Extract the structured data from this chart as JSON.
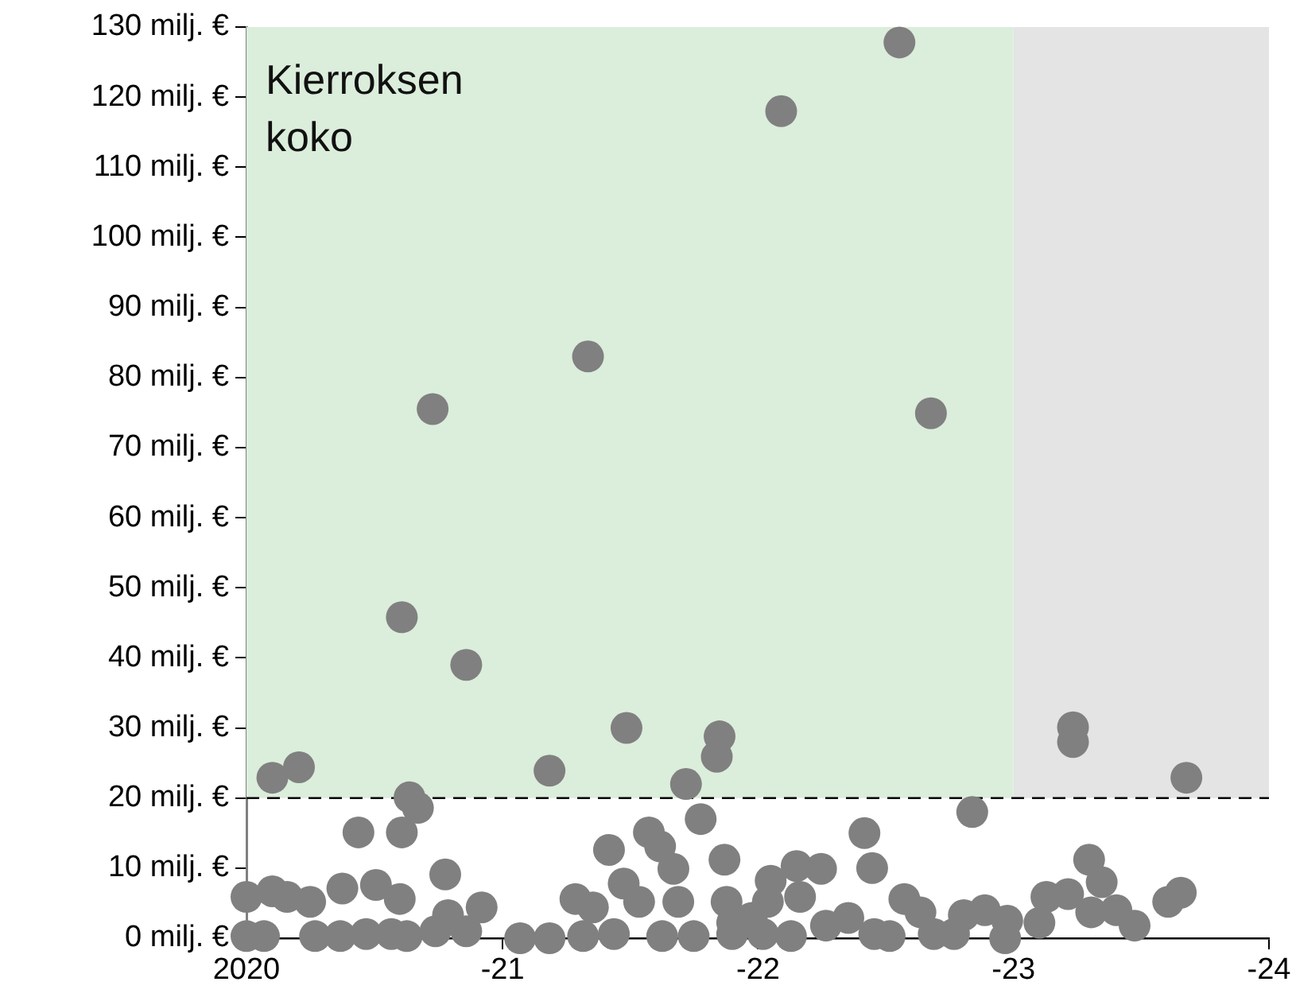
{
  "chart_data": {
    "type": "scatter",
    "color": "#808080",
    "marker": "circle",
    "grid": false,
    "legend": false,
    "xlim": [
      "2020",
      "2024"
    ],
    "xticks": [
      "2020",
      {
        "value": "2021",
        "label": "-21"
      },
      {
        "value": "2022",
        "label": "-22"
      },
      {
        "value": "2023",
        "label": "-23"
      },
      {
        "value": "2024",
        "label": "-24"
      }
    ],
    "ylim": [
      0,
      130
    ],
    "yticks": [
      {
        "value": 0,
        "label": "0 milj. €"
      },
      {
        "value": 10,
        "label": "10 milj. €"
      },
      {
        "value": 20,
        "label": "20 milj. €"
      },
      {
        "value": 30,
        "label": "30 milj. €"
      },
      {
        "value": 40,
        "label": "40 milj. €"
      },
      {
        "value": 50,
        "label": "50 milj. €"
      },
      {
        "value": 60,
        "label": "60 milj. €"
      },
      {
        "value": 70,
        "label": "70 milj. €"
      },
      {
        "value": 80,
        "label": "80 milj. €"
      },
      {
        "value": 90,
        "label": "90 milj. €"
      },
      {
        "value": 100,
        "label": "100 milj. €"
      },
      {
        "value": 110,
        "label": "110 milj. €"
      },
      {
        "value": 120,
        "label": "120 milj. €"
      },
      {
        "value": 130,
        "label": "130 milj. €"
      }
    ],
    "ref_lines": [
      {
        "axis": "y",
        "value": 20,
        "color": "#000000",
        "line_style": "dashed"
      }
    ],
    "bands": [
      {
        "axis": "x",
        "from": "2020",
        "to": "2023",
        "label": "Kierroksen koko",
        "color": "#dbeddb"
      },
      {
        "axis": "x",
        "from": "2023",
        "to": "2024",
        "color": "#e4e4e4"
      }
    ],
    "x": [
      "2022-02-03",
      "2021-05-03",
      "2020-09-23",
      "2020-08-10",
      "2022-07-22",
      "2022-09-05",
      "2020-02-07",
      "2020-03-16",
      "2020-11-10",
      "2021-03-09",
      "2021-06-27",
      "2021-11-07",
      "2021-11-03",
      "2021-09-20",
      "2020-08-21",
      "2020-09-02",
      "2020-06-09",
      "2020-08-10",
      "2020-10-11",
      "2021-10-11",
      "2021-07-29",
      "2021-08-14",
      "2021-09-02",
      "2021-06-02",
      "2021-11-14",
      "2021-06-23",
      "2020-01-01",
      "2020-02-07",
      "2020-02-28",
      "2020-04-01",
      "2020-05-17",
      "2020-07-04",
      "2020-08-07",
      "2020-10-15",
      "2020-12-02",
      "2021-04-15",
      "2021-05-10",
      "2021-07-15",
      "2021-09-09",
      "2021-11-17",
      "2020-01-01",
      "2020-01-26",
      "2020-04-08",
      "2020-05-14",
      "2020-06-20",
      "2020-07-26",
      "2020-08-17",
      "2020-09-27",
      "2020-11-10",
      "2021-01-26",
      "2021-03-09",
      "2021-04-26",
      "2021-06-09",
      "2021-08-17",
      "2021-10-01",
      "2021-11-25",
      "2021-12-23",
      "2023-03-27",
      "2023-03-27",
      "2023-09-05",
      "2022-11-03",
      "2022-06-02",
      "2022-06-13",
      "2022-02-25",
      "2022-04-01",
      "2022-01-19",
      "2023-04-19",
      "2023-05-07",
      "2023-02-17",
      "2023-03-20",
      "2023-08-28",
      "2023-08-10",
      "2022-03-02",
      "2022-07-29",
      "2022-08-21",
      "2022-10-22",
      "2022-11-21",
      "2022-12-23",
      "2023-02-07",
      "2023-04-22",
      "2023-05-28",
      "2023-06-23",
      "2022-12-20",
      "2022-04-08",
      "2022-05-10",
      "2022-06-16",
      "2022-09-09",
      "2022-10-08",
      "2021-11-25",
      "2022-01-08",
      "2022-02-17",
      "2022-01-15",
      "2022-07-08"
    ],
    "values": [
      118.0,
      83.0,
      75.5,
      45.8,
      127.8,
      74.9,
      22.9,
      24.4,
      39.0,
      23.9,
      30.0,
      28.8,
      25.9,
      22.0,
      20.1,
      18.6,
      15.1,
      15.1,
      9.1,
      17.0,
      15.1,
      13.1,
      9.9,
      12.6,
      11.2,
      7.8,
      5.9,
      6.7,
      5.9,
      5.2,
      7.1,
      7.6,
      5.6,
      3.3,
      4.4,
      5.6,
      4.4,
      5.2,
      5.2,
      5.2,
      0.3,
      0.3,
      0.3,
      0.3,
      0.6,
      0.6,
      0.3,
      1.0,
      1.0,
      0,
      0,
      0.3,
      0.6,
      0.3,
      0.3,
      0.6,
      2.9,
      30.1,
      28.0,
      22.9,
      18.0,
      15.0,
      10.0,
      10.3,
      9.9,
      8.2,
      11.2,
      8.0,
      5.9,
      6.3,
      6.5,
      5.2,
      5.9,
      5.6,
      3.7,
      3.3,
      4.0,
      2.5,
      2.2,
      3.7,
      4.0,
      1.8,
      0,
      1.8,
      2.9,
      0.6,
      0.6,
      0.6,
      2.2,
      0.6,
      0.3,
      5.2,
      0.3
    ]
  }
}
